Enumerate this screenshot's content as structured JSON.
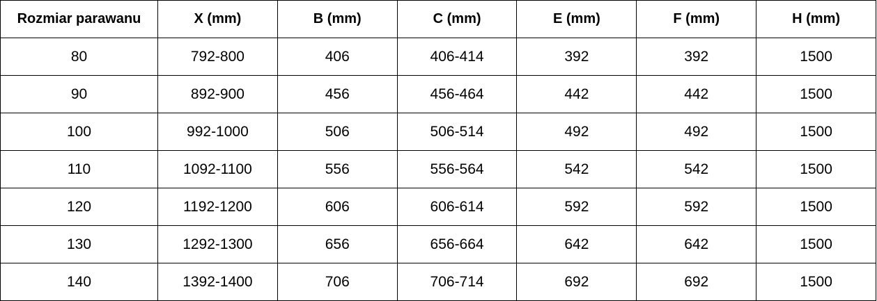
{
  "table": {
    "headers": [
      "Rozmiar parawanu",
      "X (mm)",
      "B (mm)",
      "C (mm)",
      "E (mm)",
      "F (mm)",
      "H (mm)"
    ],
    "rows": [
      [
        "80",
        "792-800",
        "406",
        "406-414",
        "392",
        "392",
        "1500"
      ],
      [
        "90",
        "892-900",
        "456",
        "456-464",
        "442",
        "442",
        "1500"
      ],
      [
        "100",
        "992-1000",
        "506",
        "506-514",
        "492",
        "492",
        "1500"
      ],
      [
        "110",
        "1092-1100",
        "556",
        "556-564",
        "542",
        "542",
        "1500"
      ],
      [
        "120",
        "1192-1200",
        "606",
        "606-614",
        "592",
        "592",
        "1500"
      ],
      [
        "130",
        "1292-1300",
        "656",
        "656-664",
        "642",
        "642",
        "1500"
      ],
      [
        "140",
        "1392-1400",
        "706",
        "706-714",
        "692",
        "692",
        "1500"
      ]
    ]
  }
}
